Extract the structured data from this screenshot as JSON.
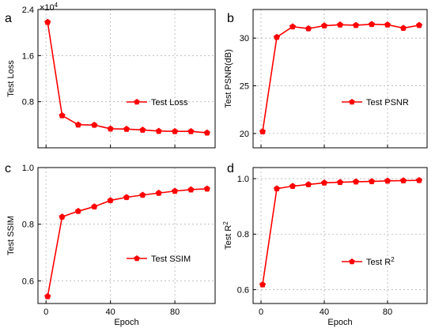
{
  "figure": {
    "accent_color": "#ff0000",
    "grid": true
  },
  "chart_data": [
    {
      "panel": "a",
      "type": "line",
      "xlabel": "",
      "ylabel": "Test Loss",
      "legend": "Test Loss",
      "legend_position": "center-right",
      "y_exponent_label": "×10",
      "y_exponent_power": "4",
      "xlim": [
        -5,
        105
      ],
      "ylim": [
        0,
        24000
      ],
      "xticks": [
        0,
        40,
        80
      ],
      "xtick_labels": [
        "",
        "",
        ""
      ],
      "yticks": [
        8000,
        16000,
        24000
      ],
      "ytick_labels": [
        "0.8",
        "1.6",
        "2.4"
      ],
      "x": [
        1,
        10,
        20,
        30,
        40,
        50,
        60,
        70,
        80,
        90,
        100
      ],
      "y": [
        21800,
        5600,
        4000,
        3950,
        3300,
        3250,
        3100,
        2900,
        2850,
        2850,
        2600
      ],
      "color": "#ff0000"
    },
    {
      "panel": "b",
      "type": "line",
      "xlabel": "",
      "ylabel": "Test PSNR(dB)",
      "legend": "Test PSNR",
      "legend_position": "center-right",
      "xlim": [
        -5,
        105
      ],
      "ylim": [
        18.5,
        33
      ],
      "xticks": [
        0,
        40,
        80
      ],
      "xtick_labels": [
        "",
        "",
        ""
      ],
      "yticks": [
        20,
        25,
        30
      ],
      "ytick_labels": [
        "20",
        "25",
        "30"
      ],
      "x": [
        1,
        10,
        20,
        30,
        40,
        50,
        60,
        70,
        80,
        90,
        100
      ],
      "y": [
        20.2,
        30.1,
        31.2,
        31.0,
        31.3,
        31.4,
        31.35,
        31.45,
        31.4,
        31.05,
        31.35
      ],
      "color": "#ff0000"
    },
    {
      "panel": "c",
      "type": "line",
      "xlabel": "Epoch",
      "ylabel": "Test SSIM",
      "legend": "Test SSIM",
      "legend_position": "center-right",
      "xlim": [
        -5,
        105
      ],
      "ylim": [
        0.52,
        1.0
      ],
      "xticks": [
        0,
        40,
        80
      ],
      "xtick_labels": [
        "0",
        "40",
        "80"
      ],
      "yticks": [
        0.6,
        0.8,
        1.0
      ],
      "ytick_labels": [
        "0.6",
        "0.8",
        "1.0"
      ],
      "x": [
        1,
        10,
        20,
        30,
        40,
        50,
        60,
        70,
        80,
        90,
        100
      ],
      "y": [
        0.545,
        0.826,
        0.846,
        0.862,
        0.884,
        0.895,
        0.903,
        0.91,
        0.917,
        0.922,
        0.925
      ],
      "color": "#ff0000"
    },
    {
      "panel": "d",
      "type": "line",
      "xlabel": "Epoch",
      "ylabel_main": "Test R",
      "ylabel_sup": "2",
      "legend_main": "Test R",
      "legend_sup": "2",
      "legend_position": "center-right",
      "xlim": [
        -5,
        105
      ],
      "ylim": [
        0.55,
        1.04
      ],
      "xticks": [
        0,
        40,
        80
      ],
      "xtick_labels": [
        "0",
        "40",
        "80"
      ],
      "yticks": [
        0.6,
        0.8,
        1.0
      ],
      "ytick_labels": [
        "0.6",
        "0.8",
        "1.0"
      ],
      "x": [
        1,
        10,
        20,
        30,
        40,
        50,
        60,
        70,
        80,
        90,
        100
      ],
      "y": [
        0.618,
        0.964,
        0.973,
        0.979,
        0.985,
        0.987,
        0.989,
        0.99,
        0.992,
        0.993,
        0.994
      ],
      "color": "#ff0000"
    }
  ]
}
